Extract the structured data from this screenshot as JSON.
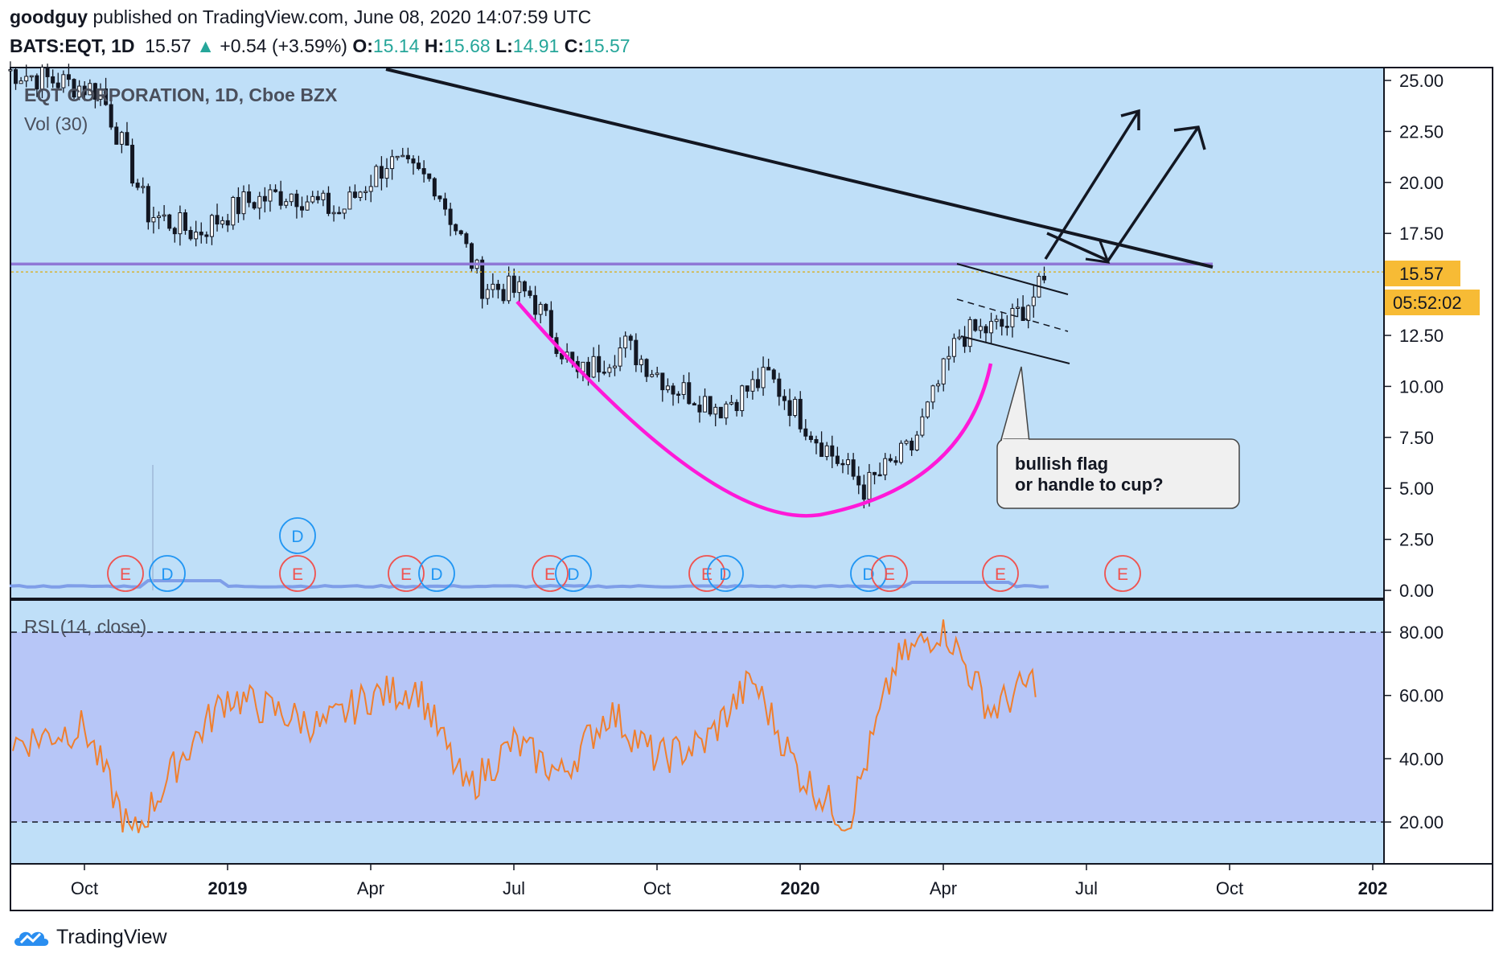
{
  "header": {
    "author": "goodguy",
    "published": "published on TradingView.com, June 08, 2020 14:07:59 UTC",
    "symbol": "BATS:EQT, 1D",
    "last": "15.57",
    "change": "+0.54 (+3.59%)",
    "o_label": "O:",
    "o": "15.14",
    "h_label": "H:",
    "h": "15.68",
    "l_label": "L:",
    "l": "14.91",
    "c_label": "C:",
    "c": "15.57",
    "arrow": "▲"
  },
  "legend": {
    "title": "EQT CORPORATION, 1D, Cboe BZX",
    "volume": "Vol (30)",
    "rsi": "RSI (14, close)"
  },
  "callout": {
    "line1": "bullish flag",
    "line2": "or handle to cup?"
  },
  "price_tags": {
    "last": "15.57",
    "countdown": "05:52:02"
  },
  "footer": {
    "brand": "TradingView"
  },
  "colors": {
    "pane_bg": "#bfdff8",
    "rsi_band": "#b7c6f7",
    "candle": "#131722",
    "rsi_line": "#f07f2d",
    "cup": "#ff19d8",
    "horizontal_level": "#8f78d6",
    "price_tag": "#f7bb35",
    "volume_ma": "#7f9ee8"
  },
  "chart_data": [
    {
      "type": "candlestick",
      "title": "EQT CORPORATION, 1D, Cboe BZX",
      "x_tick_labels": [
        "Oct",
        "2019",
        "Apr",
        "Jul",
        "Oct",
        "2020",
        "Apr",
        "Jul",
        "Oct",
        "202"
      ],
      "x": [
        "2018-10",
        "2018-11",
        "2018-12",
        "2019-01",
        "2019-02",
        "2019-03",
        "2019-04",
        "2019-05",
        "2019-06",
        "2019-07",
        "2019-08",
        "2019-09",
        "2019-10",
        "2019-11",
        "2019-12",
        "2020-01",
        "2020-02",
        "2020-03",
        "2020-04",
        "2020-05",
        "2020-06"
      ],
      "close": [
        24.5,
        18.5,
        17.5,
        19.0,
        19.5,
        18.5,
        21.0,
        20.0,
        15.0,
        14.5,
        10.5,
        12.0,
        10.0,
        9.0,
        10.5,
        7.5,
        5.0,
        7.0,
        12.5,
        13.0,
        15.57
      ],
      "y_ticks": [
        25.0,
        22.5,
        20.0,
        17.5,
        15.57,
        12.5,
        10.0,
        7.5,
        5.0,
        2.5,
        0.0
      ],
      "ylim": [
        0,
        25.5
      ],
      "horizontal_level": 16.0,
      "last_close": 15.57,
      "annotations": [
        {
          "kind": "trendline",
          "from": [
            "2018-08",
            25.0
          ],
          "to": [
            "2020-08",
            16.0
          ]
        },
        {
          "kind": "cup",
          "shape": "arc",
          "low": 3.6
        },
        {
          "kind": "flag_channel"
        },
        {
          "kind": "arrows_up",
          "targets": [
            23.5,
            22.8
          ]
        }
      ],
      "markers": [
        "E",
        "D",
        "E",
        "E",
        "D",
        "E",
        "D",
        "E",
        "D",
        "D",
        "E",
        "E",
        "E"
      ]
    },
    {
      "type": "line",
      "title": "RSI (14, close)",
      "x": [
        "2018-09",
        "2018-10",
        "2018-11",
        "2018-12",
        "2019-01",
        "2019-02",
        "2019-03",
        "2019-04",
        "2019-05",
        "2019-06",
        "2019-07",
        "2019-08",
        "2019-09",
        "2019-10",
        "2019-11",
        "2019-12",
        "2020-01",
        "2020-02",
        "2020-03",
        "2020-04",
        "2020-05",
        "2020-06"
      ],
      "series": [
        {
          "values": [
            45,
            50,
            15,
            40,
            60,
            55,
            50,
            60,
            62,
            30,
            45,
            35,
            55,
            40,
            45,
            65,
            35,
            20,
            70,
            82,
            55,
            66
          ]
        }
      ],
      "y_ticks": [
        80.0,
        60.0,
        40.0,
        20.0
      ],
      "ylim": [
        10,
        90
      ],
      "overbought": 80,
      "oversold": 20
    }
  ]
}
